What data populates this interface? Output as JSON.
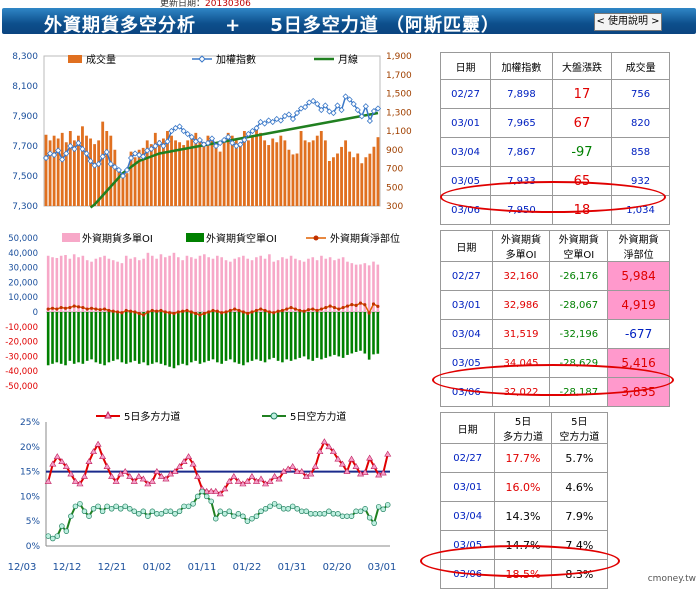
{
  "header": {
    "updated_label": "更新日期：",
    "updated_date": "20130306",
    "title": "外資期貨多空分析    +    5日多空力道 （阿斯匹靈）",
    "help_label": "< 使用說明 >"
  },
  "watermark": "cmoney.tw",
  "colors": {
    "volume": "#e07020",
    "index": "#3a78c8",
    "ma": "#208020",
    "long_oi": "#f7a8c8",
    "short_oi": "#008000",
    "net": "#e06000",
    "long_power": "#e00000",
    "short_power": "#208020",
    "pink_cell": "#ff99cc"
  },
  "chart_data": [
    {
      "type": "bar+line",
      "legend": [
        "成交量",
        "加權指數",
        "月線"
      ],
      "y_left_ticks": [
        "8,300",
        "8,100",
        "7,900",
        "7,700",
        "7,500",
        "7,300"
      ],
      "y_right_ticks": [
        "1,900",
        "1,700",
        "1,500",
        "1,300",
        "1,100",
        "900",
        "700",
        "500",
        "300"
      ],
      "ylim_left": [
        7300,
        8300
      ],
      "ylim_right": [
        300,
        1900
      ],
      "volume": [
        1060,
        1000,
        1050,
        1020,
        1080,
        980,
        1100,
        1000,
        1050,
        1150,
        1050,
        1020,
        960,
        1000,
        1200,
        1100,
        1050,
        900,
        700,
        620,
        650,
        880,
        820,
        900,
        920,
        1000,
        960,
        1080,
        1000,
        1020,
        1100,
        1050,
        1000,
        980,
        950,
        1000,
        1050,
        1080,
        1000,
        980,
        1050,
        1000,
        950,
        880,
        1000,
        1080,
        1050,
        1000,
        950,
        1100,
        1000,
        1050,
        1150,
        1080,
        1000,
        950,
        1020,
        980,
        1050,
        1000,
        900,
        850,
        860,
        1100,
        1000,
        980,
        1000,
        1050,
        1100,
        1000,
        780,
        820,
        860,
        930,
        1000,
        880,
        820,
        860,
        756,
        820,
        858,
        932,
        1034
      ],
      "index": [
        7620,
        7650,
        7640,
        7670,
        7610,
        7650,
        7700,
        7680,
        7720,
        7680,
        7650,
        7600,
        7570,
        7580,
        7630,
        7660,
        7580,
        7560,
        7540,
        7500,
        7540,
        7620,
        7650,
        7640,
        7630,
        7670,
        7680,
        7700,
        7720,
        7700,
        7730,
        7800,
        7820,
        7830,
        7800,
        7780,
        7760,
        7730,
        7740,
        7710,
        7720,
        7750,
        7700,
        7720,
        7740,
        7760,
        7720,
        7700,
        7710,
        7740,
        7780,
        7800,
        7820,
        7860,
        7850,
        7870,
        7860,
        7880,
        7870,
        7900,
        7910,
        7880,
        7920,
        7950,
        7960,
        7990,
        8000,
        7980,
        7940,
        7970,
        7930,
        7920,
        7970,
        7940,
        8030,
        8010,
        7980,
        7940,
        7898,
        7965,
        7867,
        7933,
        7950
      ],
      "ma": [
        7290,
        7310,
        7340,
        7370,
        7400,
        7430,
        7460,
        7490,
        7520,
        7540,
        7560,
        7580,
        7600,
        7610,
        7620,
        7630,
        7640,
        7650,
        7655,
        7660,
        7665,
        7670,
        7675,
        7680,
        7685,
        7690,
        7695,
        7700,
        7705,
        7710,
        7715,
        7720,
        7725,
        7730,
        7735,
        7740,
        7745,
        7750,
        7755,
        7760,
        7765,
        7770,
        7775,
        7780,
        7785,
        7790,
        7795,
        7800,
        7805,
        7810,
        7815,
        7820,
        7825,
        7830,
        7835,
        7840,
        7845,
        7850,
        7855,
        7860,
        7865,
        7870,
        7875,
        7880,
        7885,
        7890,
        7895,
        7900,
        7905,
        7910,
        7915,
        7920
      ]
    },
    {
      "type": "bar+line",
      "legend": [
        "外資期貨多單OI",
        "外資期貨空單OI",
        "外資期貨淨部位"
      ],
      "y_ticks": [
        "50,000",
        "40,000",
        "30,000",
        "20,000",
        "10,000",
        "0",
        "-10,000",
        "-20,000",
        "-30,000",
        "-40,000",
        "-50,000"
      ],
      "ylim": [
        -50000,
        50000
      ],
      "long_oi": [
        38000,
        37000,
        36500,
        38000,
        38500,
        36000,
        39000,
        37000,
        38000,
        35000,
        34000,
        36000,
        37000,
        38000,
        36000,
        35000,
        34000,
        33000,
        38000,
        36000,
        37000,
        35000,
        36000,
        40000,
        38000,
        36000,
        39000,
        37000,
        38000,
        40000,
        37000,
        35000,
        38000,
        37000,
        36000,
        38000,
        39000,
        37000,
        36000,
        38000,
        37000,
        35000,
        34000,
        36000,
        37000,
        38000,
        36000,
        35000,
        37000,
        38000,
        36000,
        39000,
        34000,
        35000,
        37000,
        36000,
        38000,
        36000,
        35000,
        34000,
        36000,
        37000,
        35000,
        38000,
        36000,
        37000,
        35000,
        36000,
        37000,
        34000,
        33000,
        32000,
        32160,
        32986,
        31519,
        34045,
        32022
      ],
      "short_oi": [
        -36000,
        -35000,
        -34000,
        -35000,
        -36000,
        -33000,
        -35000,
        -34000,
        -35000,
        -33000,
        -32000,
        -34000,
        -35000,
        -36000,
        -34000,
        -33000,
        -32000,
        -34000,
        -35000,
        -34000,
        -33000,
        -35000,
        -34000,
        -36000,
        -35000,
        -34000,
        -35000,
        -36000,
        -37000,
        -38000,
        -36000,
        -35000,
        -36000,
        -34000,
        -33000,
        -35000,
        -34000,
        -33000,
        -32000,
        -34000,
        -35000,
        -33000,
        -32000,
        -34000,
        -35000,
        -36000,
        -34000,
        -33000,
        -32000,
        -33000,
        -34000,
        -32000,
        -31000,
        -33000,
        -34000,
        -32000,
        -33000,
        -32000,
        -31000,
        -30000,
        -32000,
        -33000,
        -31000,
        -32000,
        -31000,
        -30000,
        -29000,
        -30000,
        -31000,
        -29000,
        -28000,
        -27000,
        -26176,
        -28067,
        -32196,
        -28629,
        -28187
      ],
      "net": [
        2000,
        2500,
        2000,
        3000,
        2500,
        3000,
        4000,
        3500,
        3000,
        2000,
        2500,
        2000,
        1500,
        2000,
        1000,
        500,
        0,
        -500,
        1000,
        500,
        0,
        -1000,
        -2000,
        0,
        1000,
        500,
        1000,
        0,
        -500,
        -1000,
        0,
        500,
        1000,
        0,
        -1000,
        -2000,
        -1000,
        0,
        1000,
        500,
        -500,
        0,
        1000,
        2000,
        1000,
        0,
        -1000,
        0,
        1000,
        2000,
        1000,
        0,
        -500,
        500,
        1000,
        2000,
        3000,
        2000,
        1000,
        500,
        1500,
        2000,
        1000,
        2000,
        3000,
        4000,
        3000,
        2000,
        3000,
        4000,
        5000,
        4500,
        5984,
        4919,
        -677,
        5416,
        3835
      ]
    },
    {
      "type": "line",
      "legend": [
        "5日多方力道",
        "5日空方力道"
      ],
      "y_ticks": [
        "25%",
        "20%",
        "15%",
        "10%",
        "5%",
        "0%"
      ],
      "ylim": [
        0,
        25
      ],
      "x_ticks": [
        "12/03",
        "12/12",
        "12/21",
        "01/02",
        "01/11",
        "01/22",
        "01/31",
        "02/20",
        "03/01"
      ],
      "reference_line": 15,
      "long_power": [
        13,
        16.5,
        18,
        17,
        16,
        14.5,
        13,
        12.5,
        14,
        17,
        19,
        20.5,
        18,
        16,
        14,
        13,
        14.5,
        15,
        14,
        13,
        14,
        13.5,
        12.5,
        13,
        15,
        14,
        13.5,
        14.5,
        15,
        16,
        17,
        18,
        16.5,
        14,
        11.5,
        11,
        11,
        11,
        10.5,
        11.5,
        13,
        14,
        13,
        12.5,
        13,
        14,
        13,
        13.5,
        12.5,
        13,
        14,
        13.5,
        15,
        15.5,
        16,
        15,
        15,
        14,
        14.5,
        16,
        19,
        21,
        20,
        19,
        17.5,
        16.5,
        15,
        17.5,
        16,
        14.5,
        14.8,
        17.7,
        16.0,
        14.3,
        14.7,
        18.5
      ],
      "short_power": [
        2,
        1.5,
        2,
        4,
        3,
        6,
        8,
        8.5,
        7,
        6,
        7.5,
        8,
        7,
        8,
        7.5,
        8,
        7.5,
        8,
        7.5,
        7,
        6.5,
        7,
        6,
        7,
        6.5,
        6.5,
        7,
        7,
        6.5,
        7,
        8,
        8,
        8.5,
        10,
        11,
        10,
        9,
        5.5,
        7,
        6.5,
        7,
        6,
        6.5,
        6,
        5,
        5.5,
        6,
        7,
        7.5,
        8,
        8.5,
        8,
        7.5,
        7.5,
        8,
        7.5,
        7,
        7,
        6.5,
        6.5,
        6.5,
        6.5,
        7,
        6.5,
        6.5,
        6,
        6,
        6,
        7,
        7,
        7.5,
        5.7,
        4.6,
        7.9,
        7.4,
        8.3
      ]
    }
  ],
  "tables": {
    "market": {
      "headers": [
        "日期",
        "加權指數",
        "大盤漲跌",
        "成交量"
      ],
      "rows": [
        [
          "02/27",
          "7,898",
          "17",
          "756"
        ],
        [
          "03/01",
          "7,965",
          "67",
          "820"
        ],
        [
          "03/04",
          "7,867",
          "-97",
          "858"
        ],
        [
          "03/05",
          "7,933",
          "65",
          "932"
        ],
        [
          "03/06",
          "7,950",
          "18",
          "1,034"
        ]
      ],
      "change_colors": [
        "#e00000",
        "#e00000",
        "#008000",
        "#e00000",
        "#e00000"
      ]
    },
    "oi": {
      "headers": [
        "日期",
        "外資期貨\n多單OI",
        "外資期貨\n空單OI",
        "外資期貨\n淨部位"
      ],
      "rows": [
        [
          "02/27",
          "32,160",
          "-26,176",
          "5,984"
        ],
        [
          "03/01",
          "32,986",
          "-28,067",
          "4,919"
        ],
        [
          "03/04",
          "31,519",
          "-32,196",
          "-677"
        ],
        [
          "03/05",
          "34,045",
          "-28,629",
          "5,416"
        ],
        [
          "03/06",
          "32,022",
          "-28,187",
          "3,835"
        ]
      ]
    },
    "power": {
      "headers": [
        "日期",
        "5日\n多方力道",
        "5日\n空方力道"
      ],
      "rows": [
        [
          "02/27",
          "17.7%",
          "5.7%"
        ],
        [
          "03/01",
          "16.0%",
          "4.6%"
        ],
        [
          "03/04",
          "14.3%",
          "7.9%"
        ],
        [
          "03/05",
          "14.7%",
          "7.4%"
        ],
        [
          "03/06",
          "18.5%",
          "8.3%"
        ]
      ]
    }
  }
}
